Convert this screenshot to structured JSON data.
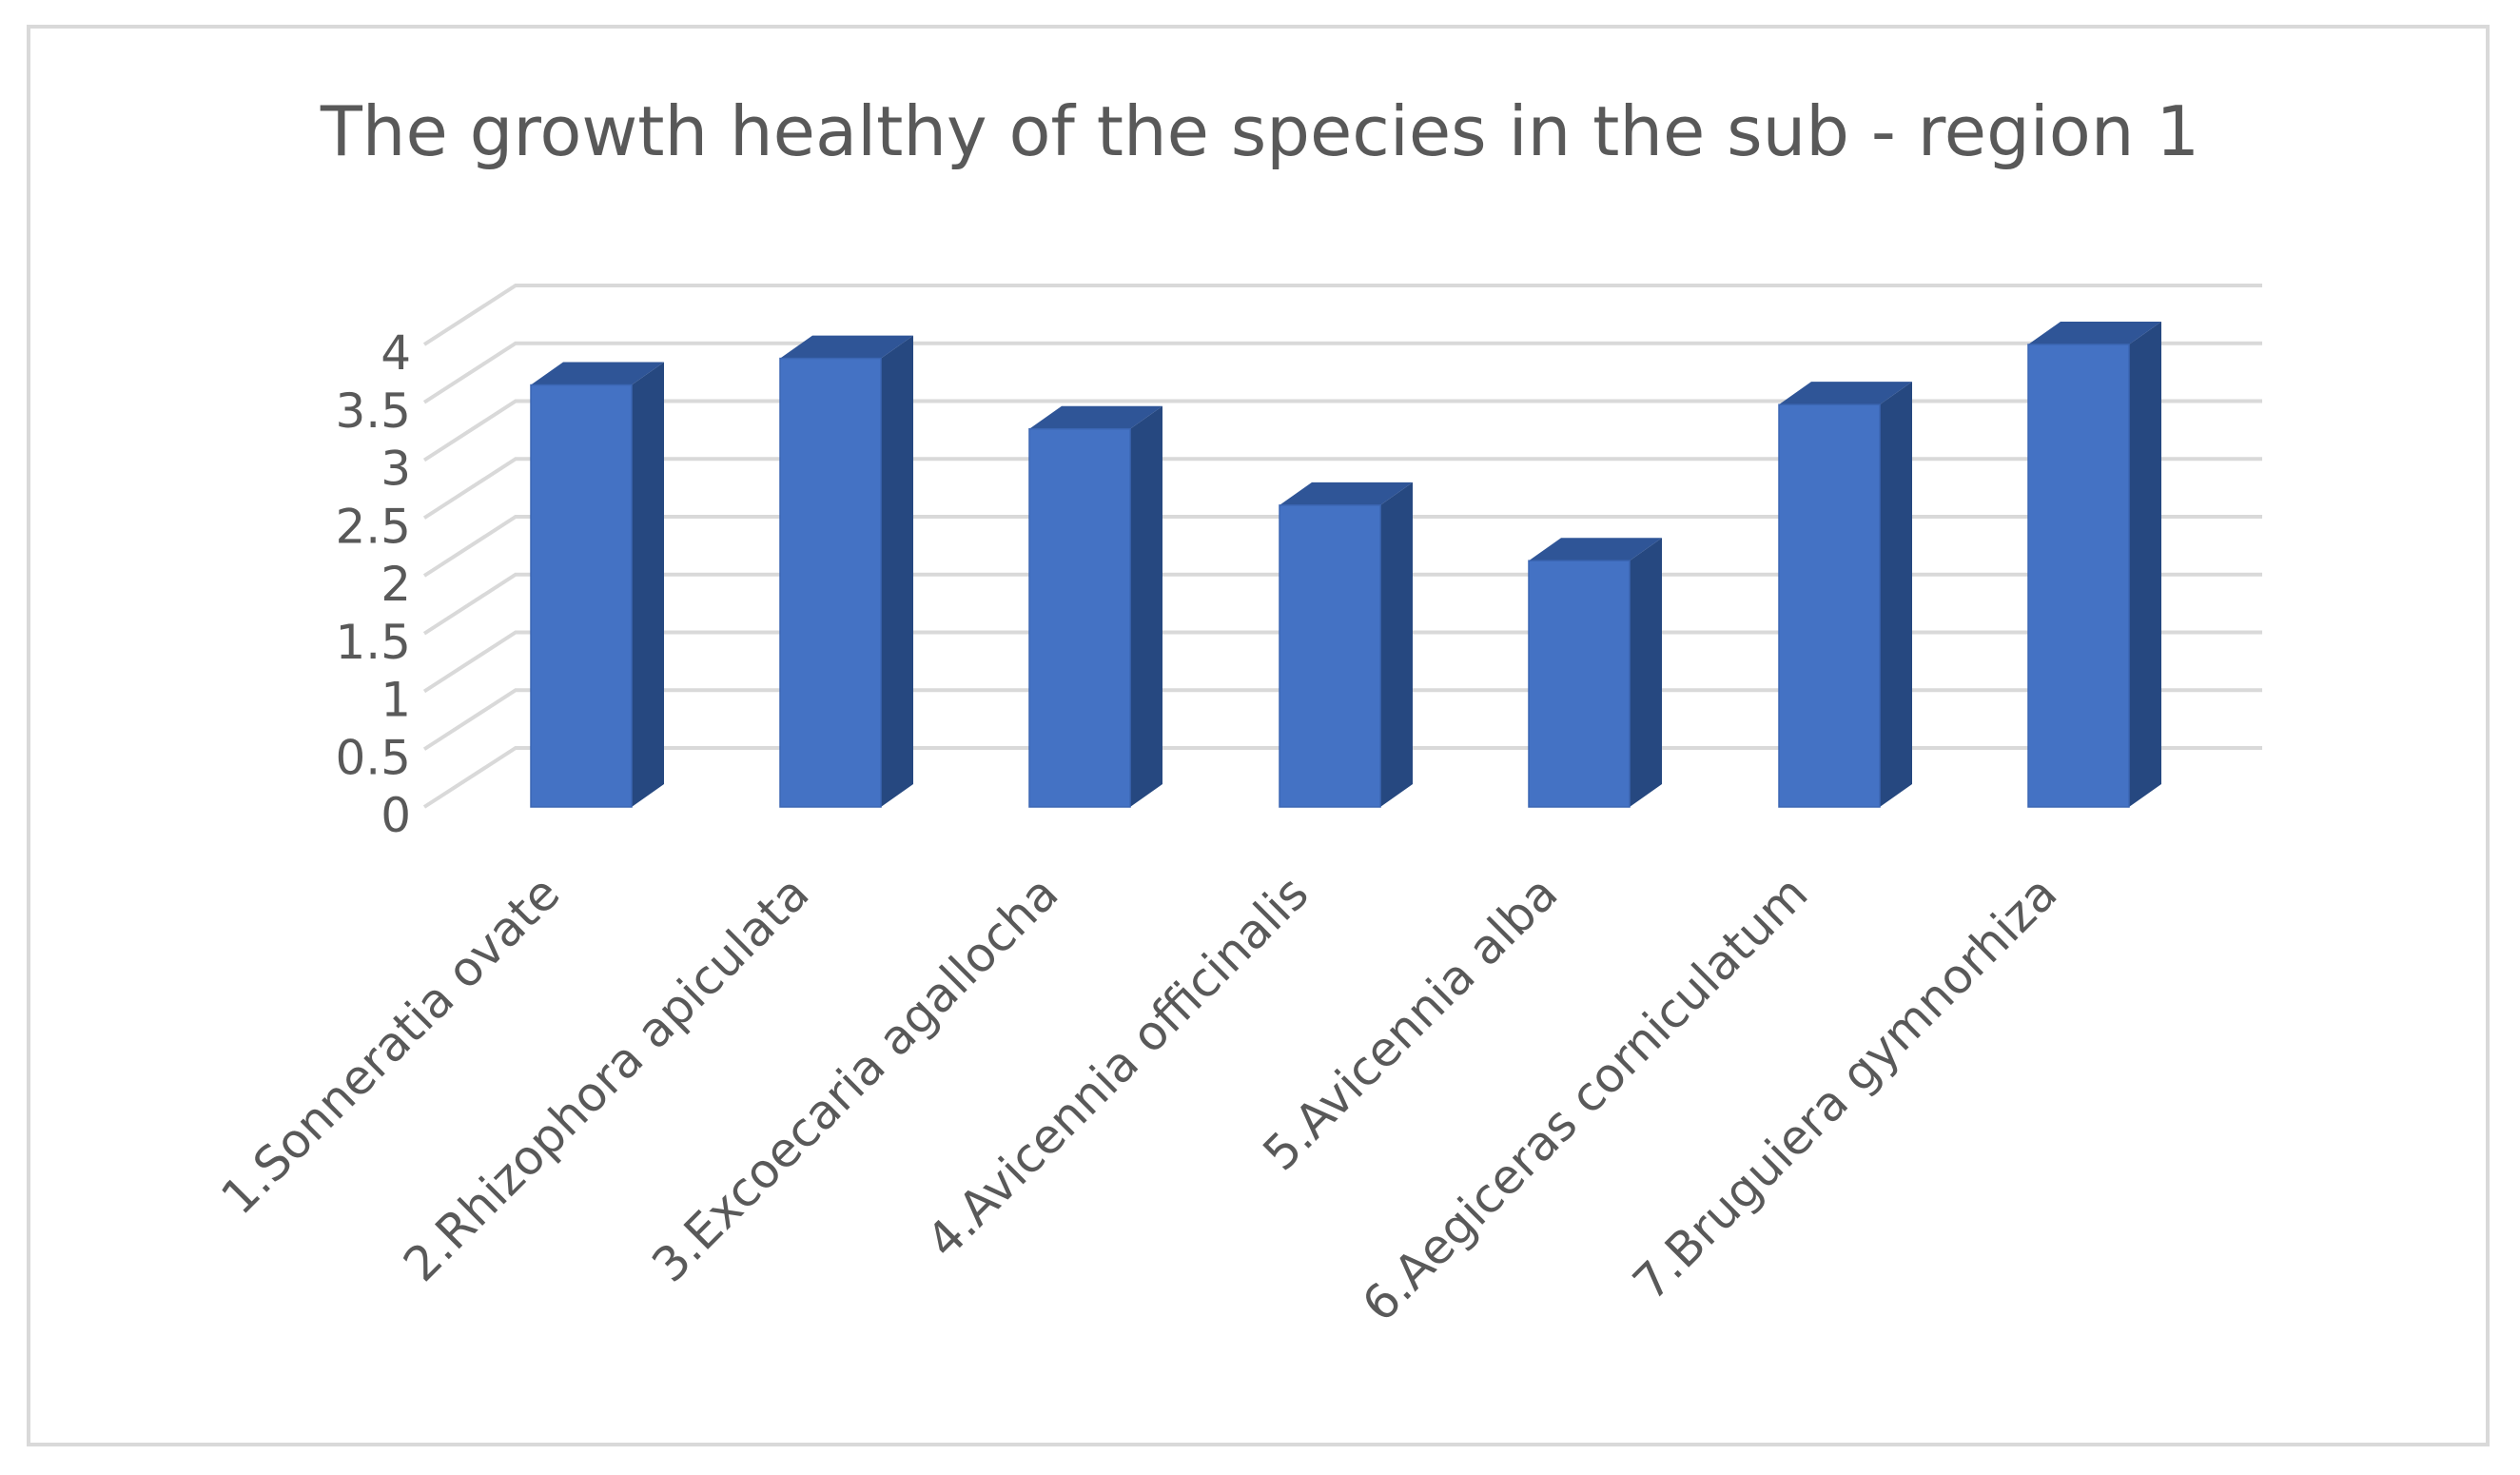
{
  "chart_data": {
    "type": "bar",
    "style": "3d-column",
    "title": "The growth healthy of the species in the sub - region 1",
    "xlabel": "",
    "ylabel": "",
    "ylim": [
      0,
      4
    ],
    "yticks": [
      "0",
      "0.5",
      "1",
      "1.5",
      "2",
      "2.5",
      "3",
      "3.5",
      "4"
    ],
    "grid": true,
    "legend": "none",
    "categories": [
      "1.Sonneratia ovate",
      "2.Rhizophora apiculata",
      "3.Excoecaria agallocha",
      "4.Avicennia officinalis",
      "5.Avicennia alba",
      "6.Aegiceras corniculatum",
      "7.Bruguiera gymnorhiza"
    ],
    "values": [
      3.65,
      3.88,
      3.27,
      2.61,
      2.13,
      3.48,
      4.0
    ]
  },
  "colors": {
    "bar_front": "#4472c4",
    "bar_side": "#264880",
    "bar_top": "#2f5597",
    "grid": "#d9d9d9",
    "text": "#595959",
    "frame": "#d9d9d9"
  }
}
